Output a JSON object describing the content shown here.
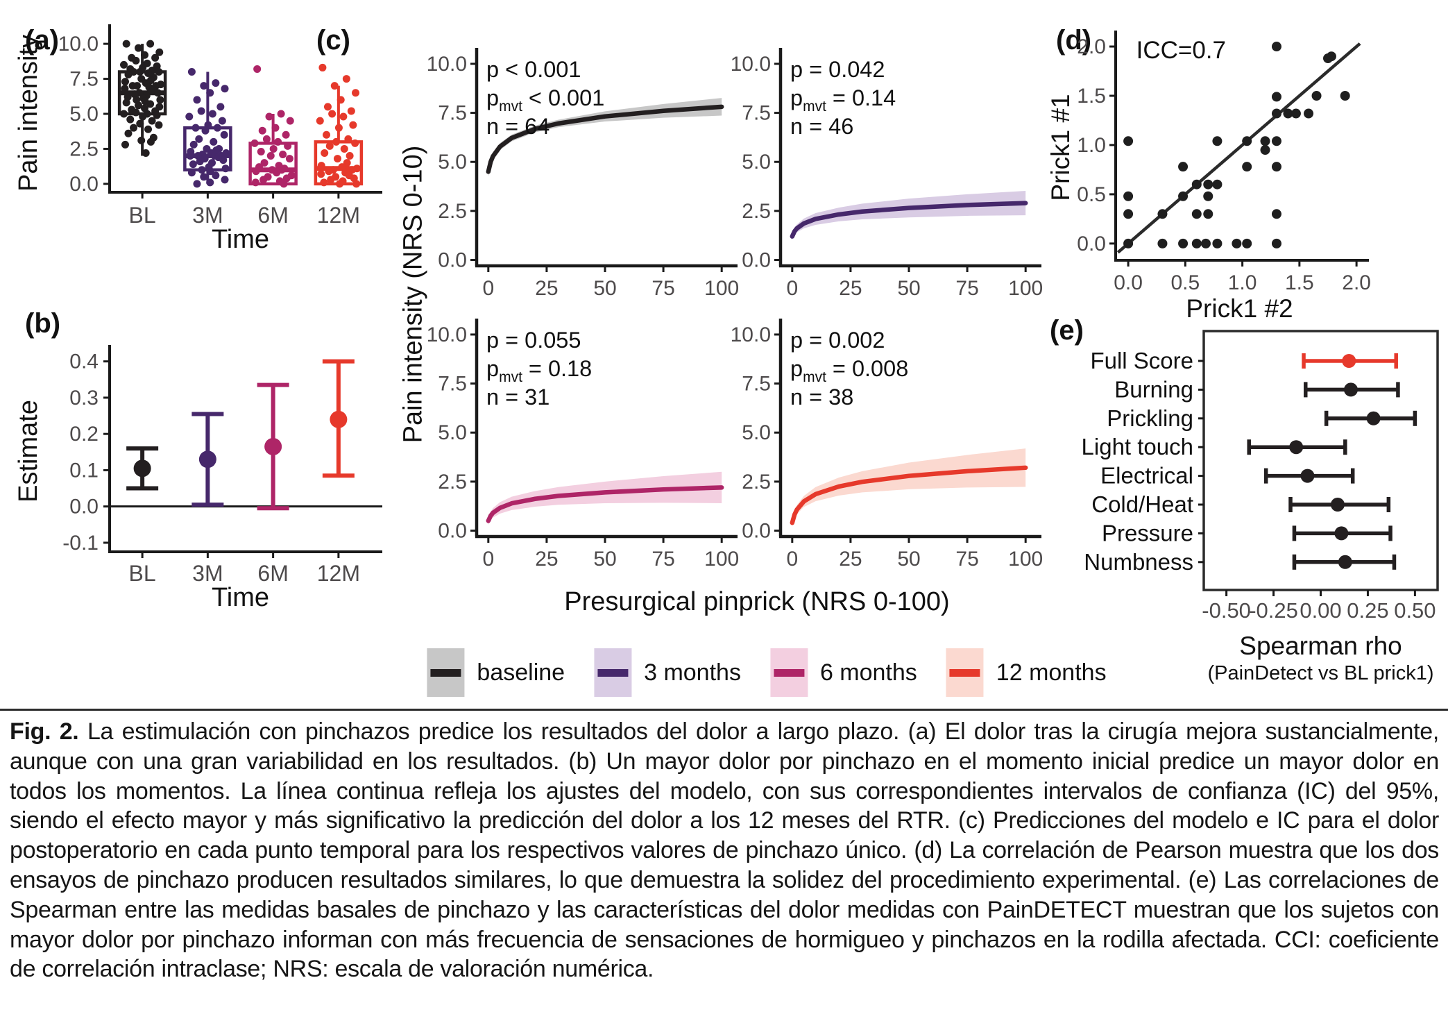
{
  "colors": {
    "baseline": "#231f20",
    "baseline_band": "#c7c7c7",
    "m3": "#46286b",
    "m3_band": "#d9cce4",
    "m6": "#ae2567",
    "m6_band": "#f3cfe0",
    "m12": "#e6392b",
    "m12_band": "#fbd9d0",
    "axis": "#1a1a1a",
    "tick_label": "#4d4a4b"
  },
  "panels": {
    "a": {
      "label": "(a)",
      "xlabel": "Time",
      "ylabel": "Pain intensity",
      "chart_data": {
        "type": "boxplot",
        "categories": [
          "BL",
          "3M",
          "6M",
          "12M"
        ],
        "yticks": [
          "0.0",
          "2.5",
          "5.0",
          "7.5",
          "10.0"
        ],
        "ytick_vals": [
          0,
          2.5,
          5,
          7.5,
          10
        ],
        "ylim": [
          -0.6,
          10.7
        ],
        "boxes": [
          {
            "category": "BL",
            "color_key": "baseline",
            "whisker_lo": 2.0,
            "q1": 5.0,
            "median": 6.5,
            "q3": 8.0,
            "whisker_hi": 10.0,
            "points": [
              10,
              10,
              9.7,
              9.4,
              9.2,
              9,
              9,
              8.8,
              8.6,
              8.5,
              8.4,
              8.3,
              8.2,
              8.1,
              8,
              8,
              8,
              7.9,
              7.8,
              7.6,
              7.5,
              7.4,
              7.3,
              7.2,
              7.1,
              7,
              7,
              7,
              6.9,
              6.8,
              6.7,
              6.5,
              6.5,
              6.4,
              6.3,
              6.2,
              6.1,
              6,
              6,
              5.9,
              5.8,
              5.7,
              5.6,
              5.5,
              5.4,
              5.3,
              5.2,
              5.1,
              5,
              5,
              4.9,
              4.8,
              4.6,
              4.5,
              4.3,
              4.2,
              4,
              3.9,
              3.6,
              3.3,
              3.1,
              3,
              2.8,
              2.2
            ]
          },
          {
            "category": "3M",
            "color_key": "m3",
            "whisker_lo": 0.0,
            "q1": 1.0,
            "median": 2.0,
            "q3": 4.0,
            "whisker_hi": 8.0,
            "points": [
              8,
              7.2,
              7,
              6.8,
              6.5,
              6,
              5.5,
              5.2,
              5,
              4.8,
              4.5,
              4.2,
              4,
              4,
              3.8,
              3.5,
              3.2,
              3,
              2.8,
              2.5,
              2.5,
              2.4,
              2.3,
              2.2,
              2.2,
              2.1,
              2,
              2,
              2,
              2,
              1.9,
              1.8,
              1.7,
              1.6,
              1.5,
              1.4,
              1.2,
              1.1,
              1,
              0.9,
              0.8,
              0.6,
              0.5,
              0.3,
              0.1,
              0
            ]
          },
          {
            "category": "6M",
            "color_key": "m6",
            "whisker_lo": 0.0,
            "q1": 0.0,
            "median": 1.0,
            "q3": 2.9,
            "whisker_hi": 5.0,
            "points": [
              8.2,
              5,
              4.8,
              4.5,
              4,
              3.8,
              3.5,
              3.2,
              3,
              2.9,
              2.7,
              2.5,
              2.3,
              2.1,
              2,
              1.8,
              1.5,
              1.3,
              1.2,
              1.1,
              1,
              1,
              0.9,
              0.8,
              0.6,
              0.5,
              0.4,
              0.3,
              0.2,
              0.1,
              0
            ]
          },
          {
            "category": "12M",
            "color_key": "m12",
            "whisker_lo": 0.0,
            "q1": 0.0,
            "median": 1.1,
            "q3": 3.0,
            "whisker_hi": 7.0,
            "points": [
              8.3,
              7.5,
              7,
              6.5,
              6,
              5.5,
              5.2,
              5,
              4.8,
              4.5,
              4.2,
              4,
              3.5,
              3.2,
              3,
              2.9,
              2.7,
              2.5,
              2.2,
              2,
              1.8,
              1.5,
              1.3,
              1.2,
              1.1,
              1,
              1,
              0.9,
              0.8,
              0.7,
              0.6,
              0.5,
              0.4,
              0.3,
              0.2,
              0.1,
              0,
              0
            ]
          }
        ]
      }
    },
    "b": {
      "label": "(b)",
      "xlabel": "Time",
      "ylabel": "Estimate",
      "chart_data": {
        "type": "errorbar",
        "categories": [
          "BL",
          "3M",
          "6M",
          "12M"
        ],
        "yticks": [
          "-0.1",
          "0.0",
          "0.1",
          "0.2",
          "0.3",
          "0.4"
        ],
        "ytick_vals": [
          -0.1,
          0,
          0.1,
          0.2,
          0.3,
          0.4
        ],
        "ylim": [
          -0.125,
          0.43
        ],
        "hline": 0,
        "points": [
          {
            "category": "BL",
            "est": 0.105,
            "lo": 0.05,
            "hi": 0.16,
            "color_key": "baseline"
          },
          {
            "category": "3M",
            "est": 0.13,
            "lo": 0.005,
            "hi": 0.255,
            "color_key": "m3"
          },
          {
            "category": "6M",
            "est": 0.165,
            "lo": -0.005,
            "hi": 0.335,
            "color_key": "m6"
          },
          {
            "category": "12M",
            "est": 0.24,
            "lo": 0.085,
            "hi": 0.4,
            "color_key": "m12"
          }
        ]
      }
    },
    "c": {
      "label": "(c)",
      "ylabel": "Pain intensity (NRS 0-10)",
      "xlabel": "Presurgical pinprick (NRS 0-100)",
      "chart_data": {
        "type": "line",
        "xticks": [
          "0",
          "25",
          "50",
          "75",
          "100"
        ],
        "xtick_vals": [
          0,
          25,
          50,
          75,
          100
        ],
        "yticks": [
          "0.0",
          "2.5",
          "5.0",
          "7.5",
          "10.0"
        ],
        "ytick_vals": [
          0,
          2.5,
          5,
          7.5,
          10
        ],
        "xlim": [
          -5,
          105
        ],
        "ylim": [
          -0.3,
          10.6
        ],
        "subplots": [
          {
            "name": "baseline",
            "p": "p < 0.001",
            "pmvt_pre": "p",
            "pmvt_sub": "mvt",
            "pmvt_rest": " < 0.001",
            "n": "n = 64",
            "color_key": "baseline",
            "band_key": "baseline_band",
            "x": [
              0,
              1,
              2,
              5,
              10,
              20,
              30,
              50,
              75,
              100
            ],
            "y": [
              4.5,
              5.0,
              5.29,
              5.78,
              6.22,
              6.68,
              6.96,
              7.32,
              7.6,
              7.81
            ],
            "hw": [
              0.25,
              0.22,
              0.2,
              0.18,
              0.17,
              0.17,
              0.19,
              0.26,
              0.35,
              0.45
            ]
          },
          {
            "name": "3 months",
            "p": "p = 0.042",
            "pmvt_pre": "p",
            "pmvt_sub": "mvt",
            "pmvt_rest": " = 0.14",
            "n": "n = 46",
            "color_key": "m3",
            "band_key": "m3_band",
            "x": [
              0,
              1,
              2,
              5,
              10,
              20,
              30,
              50,
              75,
              100
            ],
            "y": [
              1.2,
              1.46,
              1.61,
              1.86,
              2.09,
              2.32,
              2.47,
              2.65,
              2.8,
              2.9
            ],
            "hw": [
              0.15,
              0.18,
              0.2,
              0.25,
              0.3,
              0.35,
              0.4,
              0.48,
              0.55,
              0.62
            ]
          },
          {
            "name": "6 months",
            "p": "p = 0.055",
            "pmvt_pre": "p",
            "pmvt_sub": "mvt",
            "pmvt_rest": " = 0.18",
            "n": "n = 31",
            "color_key": "m6",
            "band_key": "m6_band",
            "x": [
              0,
              1,
              2,
              5,
              10,
              20,
              30,
              50,
              75,
              100
            ],
            "y": [
              0.5,
              0.76,
              0.91,
              1.16,
              1.39,
              1.62,
              1.77,
              1.95,
              2.1,
              2.2
            ],
            "hw": [
              0.2,
              0.22,
              0.24,
              0.29,
              0.34,
              0.4,
              0.45,
              0.55,
              0.68,
              0.8
            ]
          },
          {
            "name": "12 months",
            "p": "p = 0.002",
            "pmvt_pre": "p",
            "pmvt_sub": "mvt",
            "pmvt_rest": " = 0.008",
            "n": "n = 38",
            "color_key": "m12",
            "band_key": "m12_band",
            "x": [
              0,
              1,
              2,
              5,
              10,
              20,
              30,
              50,
              75,
              100
            ],
            "y": [
              0.4,
              0.82,
              1.07,
              1.49,
              1.86,
              2.25,
              2.49,
              2.79,
              3.03,
              3.21
            ],
            "hw": [
              0.18,
              0.2,
              0.23,
              0.28,
              0.36,
              0.46,
              0.54,
              0.68,
              0.83,
              0.98
            ]
          }
        ]
      }
    },
    "d": {
      "label": "(d)",
      "annotation": "ICC=0.7",
      "xlabel": "Prick1 #2",
      "ylabel": "Prick1 #1",
      "chart_data": {
        "type": "scatter",
        "xticks": [
          "0.0",
          "0.5",
          "1.0",
          "1.5",
          "2.0"
        ],
        "tick_vals": [
          0,
          0.5,
          1,
          1.5,
          2
        ],
        "xlim": [
          -0.11,
          2.06
        ],
        "ylim": [
          -0.17,
          2.12
        ],
        "identity_line": [
          [
            -0.09,
            -0.09
          ],
          [
            2.03,
            2.03
          ]
        ],
        "points": [
          [
            0,
            0
          ],
          [
            0,
            0.3
          ],
          [
            0,
            0.48
          ],
          [
            0,
            1.04
          ],
          [
            0.3,
            0
          ],
          [
            0.3,
            0.3
          ],
          [
            0.48,
            0
          ],
          [
            0.48,
            0.48
          ],
          [
            0.48,
            0.78
          ],
          [
            0.6,
            0
          ],
          [
            0.6,
            0.3
          ],
          [
            0.6,
            0.6
          ],
          [
            0.68,
            0
          ],
          [
            0.7,
            0.3
          ],
          [
            0.7,
            0.48
          ],
          [
            0.7,
            0.6
          ],
          [
            0.78,
            0
          ],
          [
            0.78,
            0.6
          ],
          [
            0.78,
            1.04
          ],
          [
            0.95,
            0
          ],
          [
            1.04,
            0
          ],
          [
            1.04,
            0.78
          ],
          [
            1.04,
            1.04
          ],
          [
            1.2,
            0.95
          ],
          [
            1.2,
            1.04
          ],
          [
            1.3,
            0
          ],
          [
            1.3,
            0.3
          ],
          [
            1.3,
            0.78
          ],
          [
            1.3,
            1.04
          ],
          [
            1.3,
            1.32
          ],
          [
            1.3,
            1.49
          ],
          [
            1.3,
            2.0
          ],
          [
            1.4,
            1.32
          ],
          [
            1.47,
            1.32
          ],
          [
            1.58,
            1.32
          ],
          [
            1.65,
            1.5
          ],
          [
            1.75,
            1.88
          ],
          [
            1.78,
            1.9
          ],
          [
            1.9,
            1.5
          ]
        ]
      }
    },
    "e": {
      "label": "(e)",
      "xlabel": "Spearman rho",
      "xlabel_sub": "(PainDetect vs BL prick1)",
      "chart_data": {
        "type": "forest",
        "xticks": [
          "-0.50",
          "-0.25",
          "0.00",
          "0.25",
          "0.50"
        ],
        "xtick_vals": [
          -0.5,
          -0.25,
          0,
          0.25,
          0.5
        ],
        "xlim": [
          -0.62,
          0.62
        ],
        "rows": [
          {
            "label": "Full Score",
            "est": 0.15,
            "lo": -0.09,
            "hi": 0.4,
            "color_key": "m12"
          },
          {
            "label": "Burning",
            "est": 0.16,
            "lo": -0.08,
            "hi": 0.41,
            "color_key": "baseline"
          },
          {
            "label": "Prickling",
            "est": 0.28,
            "lo": 0.03,
            "hi": 0.5,
            "color_key": "baseline"
          },
          {
            "label": "Light touch",
            "est": -0.13,
            "lo": -0.38,
            "hi": 0.13,
            "color_key": "baseline"
          },
          {
            "label": "Electrical",
            "est": -0.07,
            "lo": -0.29,
            "hi": 0.17,
            "color_key": "baseline"
          },
          {
            "label": "Cold/Heat",
            "est": 0.09,
            "lo": -0.16,
            "hi": 0.36,
            "color_key": "baseline"
          },
          {
            "label": "Pressure",
            "est": 0.11,
            "lo": -0.14,
            "hi": 0.37,
            "color_key": "baseline"
          },
          {
            "label": "Numbness",
            "est": 0.13,
            "lo": -0.14,
            "hi": 0.39,
            "color_key": "baseline"
          }
        ]
      }
    }
  },
  "legend": {
    "items": [
      {
        "label": "baseline",
        "line_key": "baseline",
        "band_key": "baseline_band"
      },
      {
        "label": "3 months",
        "line_key": "m3",
        "band_key": "m3_band"
      },
      {
        "label": "6 months",
        "line_key": "m6",
        "band_key": "m6_band"
      },
      {
        "label": "12 months",
        "line_key": "m12",
        "band_key": "m12_band"
      }
    ]
  },
  "caption": {
    "label": "Fig. 2.",
    "text": "La estimulación con pinchazos predice los resultados del dolor a largo plazo. (a) El dolor tras la cirugía mejora sustancialmente, aunque con una gran variabilidad en los resultados. (b) Un mayor dolor por pinchazo en el momento inicial predice un mayor dolor en todos los momentos. La línea continua refleja los ajustes del modelo, con sus correspondientes intervalos de confianza (IC) del 95%, siendo el efecto mayor y más significativo la predicción del dolor a los 12 meses del RTR. (c) Predicciones del modelo e IC para el dolor postoperatorio en cada punto temporal para los respectivos valores de pinchazo único. (d) La correlación de Pearson muestra que los dos ensayos de pinchazo producen resultados similares, lo que demuestra la solidez del procedimiento experimental. (e) Las correlaciones de Spearman entre las medidas basales de pinchazo y las características del dolor medidas con PainDETECT muestran que los sujetos con mayor dolor por pinchazo informan con más frecuencia de sensaciones de hormigueo y pinchazos en la rodilla afectada. CCI: coeficiente de correlación intraclase; NRS: escala de valoración numérica."
  }
}
